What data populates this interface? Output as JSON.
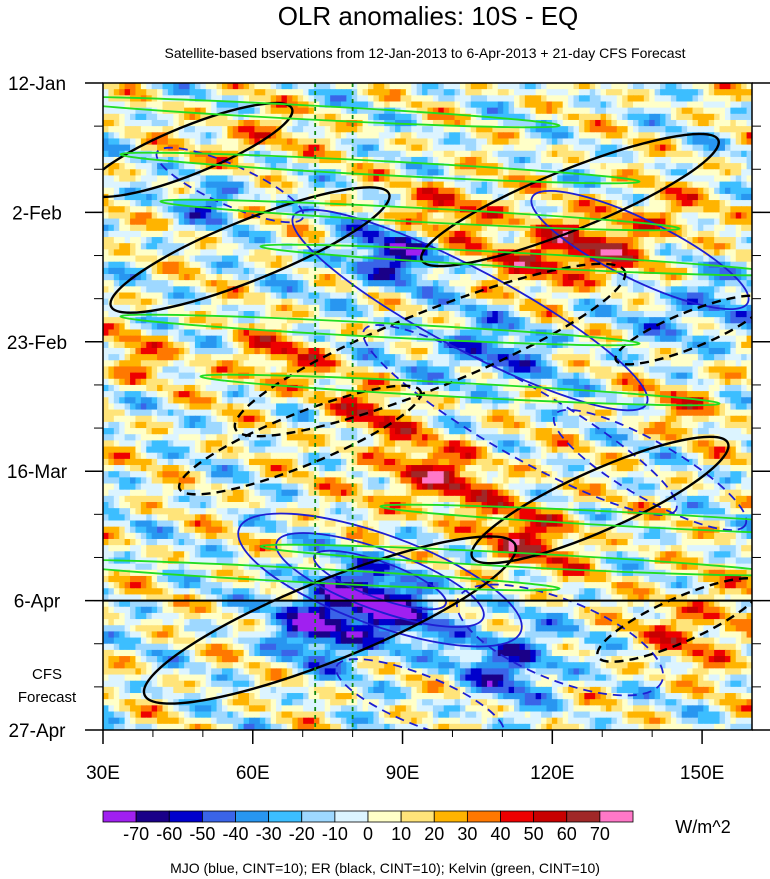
{
  "chart_data": {
    "type": "heatmap",
    "title": "OLR anomalies: 10S - EQ",
    "subtitle": "Satellite-based bservations from 12-Jan-2013 to 6-Apr-2013 + 21-day CFS Forecast",
    "xlabel": "",
    "ylabel": "",
    "x_ticks": [
      {
        "value": 30,
        "label": "30E"
      },
      {
        "value": 60,
        "label": "60E"
      },
      {
        "value": 90,
        "label": "90E"
      },
      {
        "value": 120,
        "label": "120E"
      },
      {
        "value": 150,
        "label": "150E"
      }
    ],
    "xlim": [
      30,
      160
    ],
    "y_ticks": [
      {
        "value": "2013-01-12",
        "label": "12-Jan"
      },
      {
        "value": "2013-02-02",
        "label": "2-Feb"
      },
      {
        "value": "2013-02-23",
        "label": "23-Feb"
      },
      {
        "value": "2013-03-16",
        "label": "16-Mar"
      },
      {
        "value": "2013-04-06",
        "label": "6-Apr"
      },
      {
        "value": "2013-04-27",
        "label": "27-Apr"
      }
    ],
    "ylim": [
      "2013-01-12",
      "2013-04-27"
    ],
    "observation_end": "2013-04-06",
    "forecast_label_line1": "CFS",
    "forecast_label_line2": "Forecast",
    "reference_longitudes": [
      72.5,
      80
    ],
    "colorbar": {
      "unit": "W/m^2",
      "levels": [
        -70,
        -60,
        -50,
        -40,
        -30,
        -20,
        -10,
        0,
        10,
        20,
        30,
        40,
        50,
        60,
        70
      ],
      "tick_labels": [
        "-70",
        "-60",
        "-50",
        "-40",
        "-30",
        "-20",
        "-10",
        "0",
        "10",
        "20",
        "30",
        "40",
        "50",
        "60",
        "70"
      ],
      "colors": [
        "#a020f0",
        "#1a0088",
        "#0000cc",
        "#3a64e8",
        "#2896f0",
        "#3cbeff",
        "#9ed8ff",
        "#dcf4ff",
        "#ffffc8",
        "#ffe47a",
        "#ffb400",
        "#ff7800",
        "#ee0000",
        "#c80000",
        "#a02828",
        "#ff78c8"
      ]
    },
    "contour_legend": "MJO (blue, CINT=10); ER (black, CINT=10); Kelvin (green, CINT=10)",
    "contour_series": [
      {
        "name": "MJO",
        "color": "#1e1ed2"
      },
      {
        "name": "ER",
        "color": "#000000"
      },
      {
        "name": "Kelvin",
        "color": "#22dd22"
      }
    ]
  }
}
